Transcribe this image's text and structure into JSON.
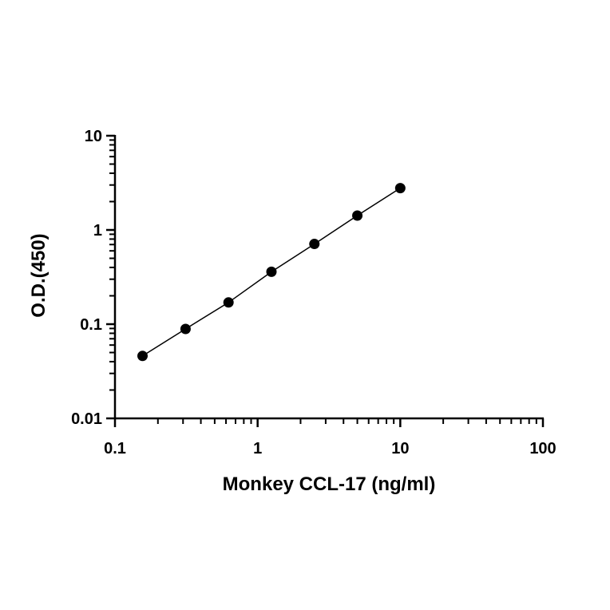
{
  "chart_data": {
    "type": "scatter",
    "title": "",
    "xlabel": "Monkey CCL-17 (ng/ml)",
    "ylabel": "O.D.(450)",
    "x_scale": "log",
    "y_scale": "log",
    "xlim": [
      0.1,
      100
    ],
    "ylim": [
      0.01,
      10
    ],
    "x_ticks": [
      "0.1",
      "1",
      "10",
      "100"
    ],
    "y_ticks": [
      "0.01",
      "0.1",
      "1",
      "10"
    ],
    "grid": false,
    "legend": "none",
    "marker_color": "#000000",
    "series": [
      {
        "x": [
          0.156,
          0.3125,
          0.625,
          1.25,
          2.5,
          5,
          10
        ],
        "y": [
          0.046,
          0.089,
          0.17,
          0.36,
          0.71,
          1.42,
          2.78
        ],
        "fit_line": true
      }
    ]
  }
}
